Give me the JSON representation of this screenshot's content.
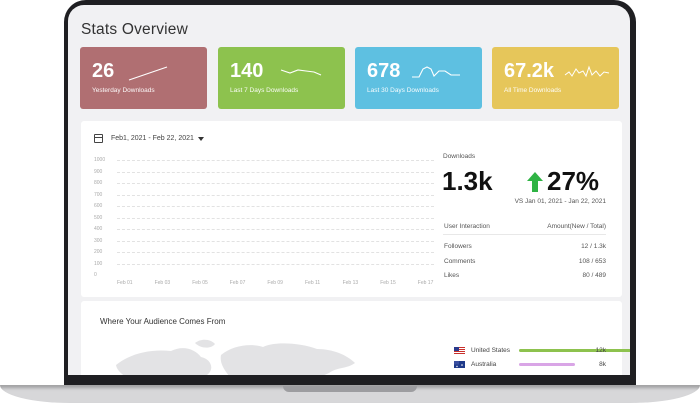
{
  "title": "Stats Overview",
  "cards": [
    {
      "value": "26",
      "label": "Yesterday Downloads",
      "color": "#b06f72"
    },
    {
      "value": "140",
      "label": "Last 7 Days Downloads",
      "color": "#8dc24e"
    },
    {
      "value": "678",
      "label": "Last 30 Days Downloads",
      "color": "#5ec0e1"
    },
    {
      "value": "67.2k",
      "label": "All Time Downloads",
      "color": "#e6c65a"
    }
  ],
  "date_range": "Feb1, 2021 - Feb 22, 2021",
  "chart": {
    "y_ticks": [
      "1000",
      "900",
      "800",
      "700",
      "600",
      "500",
      "400",
      "300",
      "200",
      "100",
      "0"
    ],
    "x_ticks": [
      "Feb 01",
      "Feb 03",
      "Feb 05",
      "Feb 07",
      "Feb 09",
      "Feb 11",
      "Feb 13",
      "Feb 15",
      "Feb 17"
    ]
  },
  "downloads": {
    "label": "Downloads",
    "value": "1.3k",
    "change": "27%",
    "change_color": "#2fb344",
    "comparison": "VS Jan 01, 2021 - Jan 22, 2021"
  },
  "interaction_table": {
    "header_left": "User Interaction",
    "header_right": "Amount(New / Total)",
    "rows": [
      {
        "label": "Followers",
        "value": "12 / 1.3k"
      },
      {
        "label": "Comments",
        "value": "108 / 653"
      },
      {
        "label": "Likes",
        "value": "80 / 489"
      }
    ]
  },
  "audience": {
    "title": "Where Your Audience Comes From",
    "countries": [
      {
        "name": "United States",
        "value": "12k",
        "bar_fraction": 1.0,
        "color": "#8dc24e"
      },
      {
        "name": "Australia",
        "value": "8k",
        "bar_fraction": 0.37,
        "color": "#d9a5e6"
      }
    ]
  }
}
